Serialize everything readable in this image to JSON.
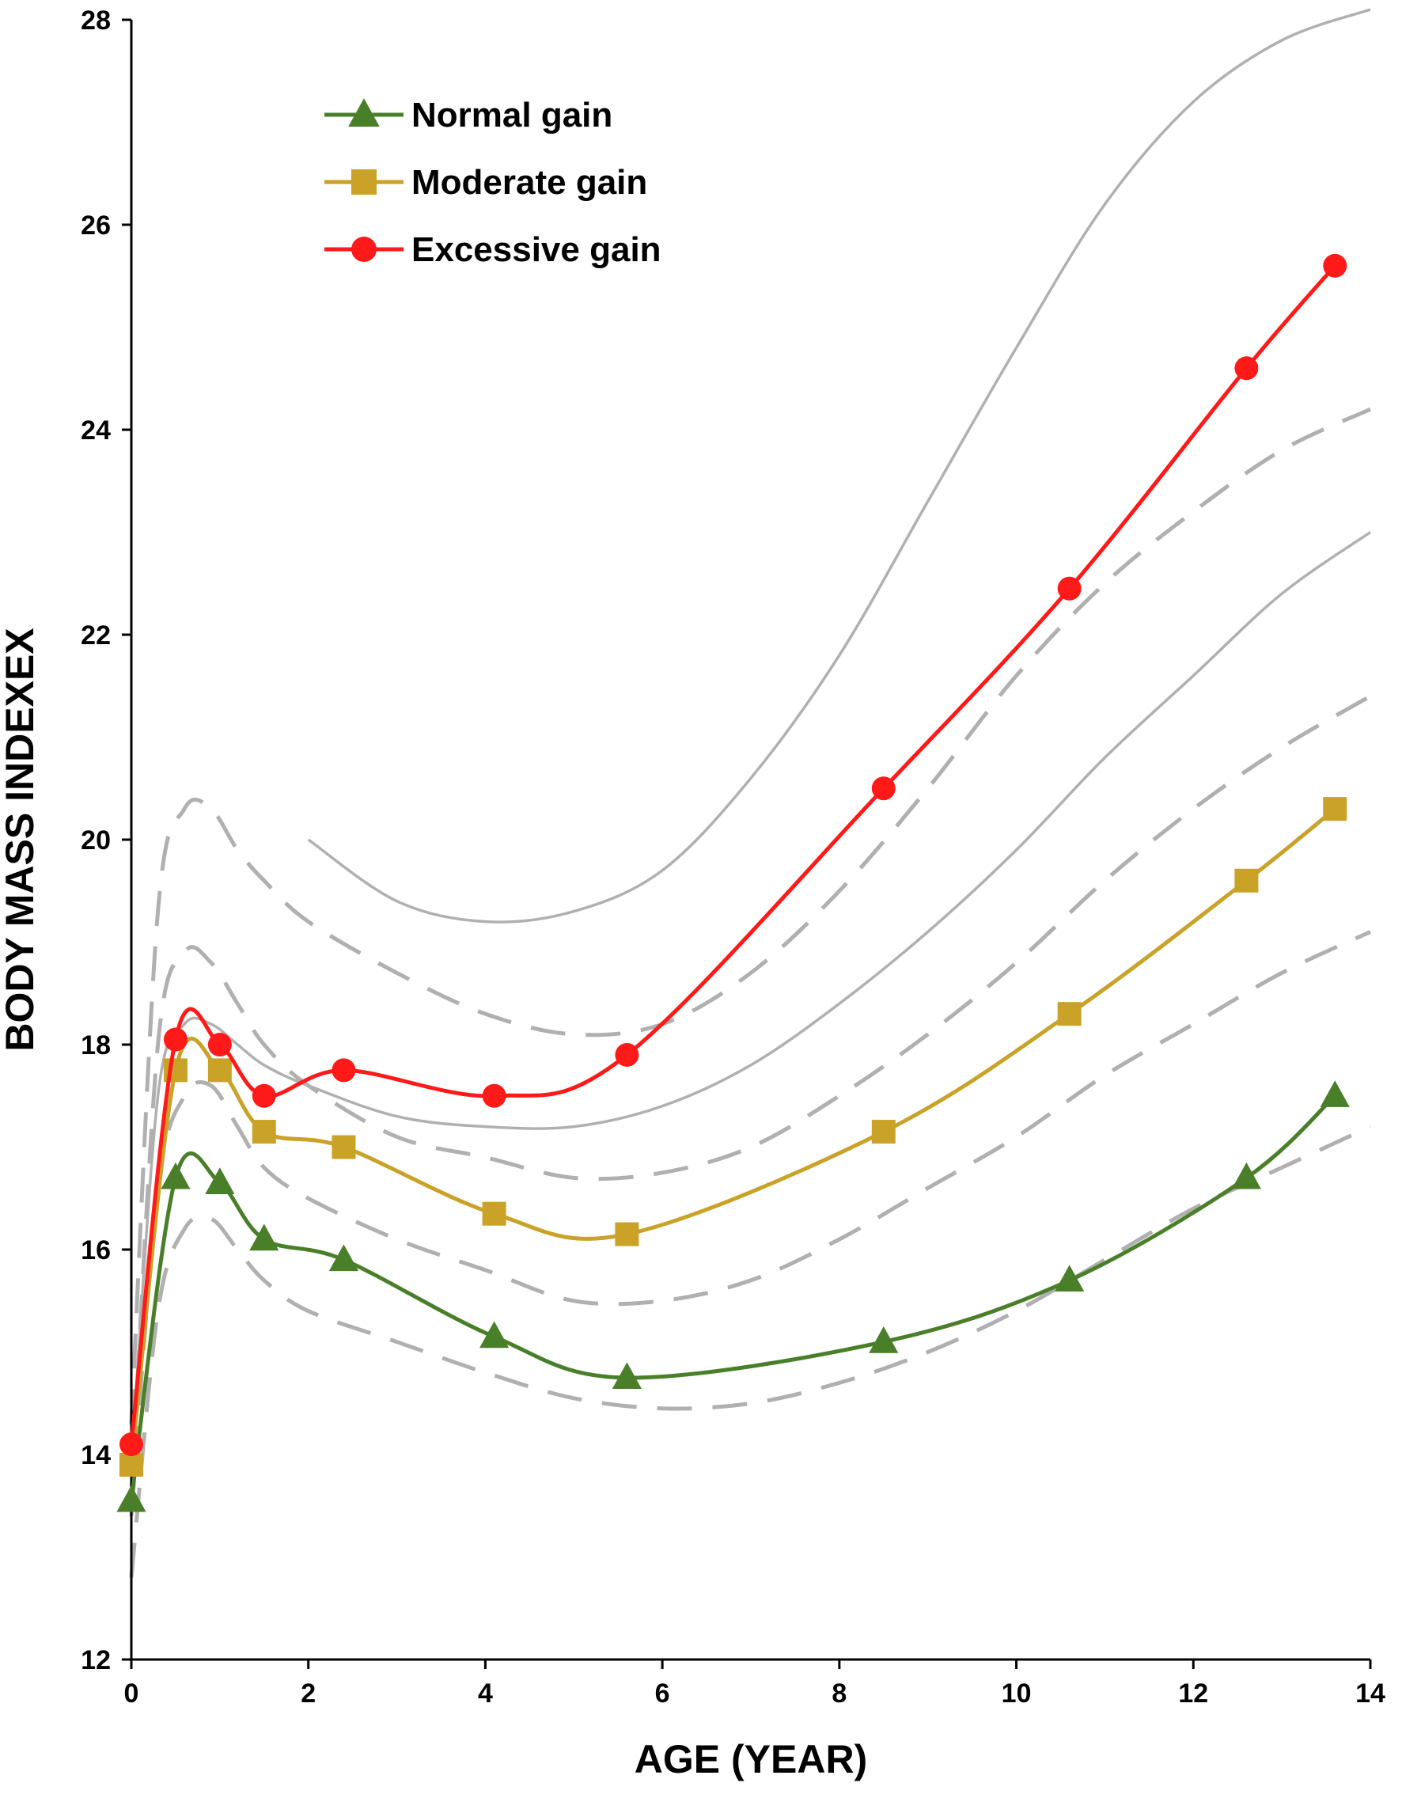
{
  "chart_data": {
    "type": "line",
    "xlabel": "AGE (YEAR)",
    "ylabel": "BODY MASS INDEXEX",
    "xlim": [
      0,
      14
    ],
    "ylim": [
      12,
      28
    ],
    "xticks": [
      0,
      2,
      4,
      6,
      8,
      10,
      12,
      14
    ],
    "yticks": [
      12,
      14,
      16,
      18,
      20,
      22,
      24,
      26,
      28
    ],
    "grid": false,
    "legend_position": "top-left",
    "series": [
      {
        "name": "Normal gain",
        "color": "#4a7f2a",
        "marker": "triangle",
        "x": [
          0,
          0.5,
          1.0,
          1.5,
          2.4,
          4.1,
          5.6,
          8.5,
          10.6,
          12.6,
          13.6
        ],
        "y": [
          13.55,
          16.7,
          16.65,
          16.1,
          15.9,
          15.15,
          14.75,
          15.1,
          15.7,
          16.7,
          17.5
        ]
      },
      {
        "name": "Moderate gain",
        "color": "#c9a227",
        "marker": "square",
        "x": [
          0,
          0.5,
          1.0,
          1.5,
          2.4,
          4.1,
          5.6,
          8.5,
          10.6,
          12.6,
          13.6
        ],
        "y": [
          13.9,
          17.75,
          17.75,
          17.15,
          17.0,
          16.35,
          16.15,
          17.15,
          18.3,
          19.6,
          20.3
        ]
      },
      {
        "name": "Excessive gain",
        "color": "#ff1a1a",
        "marker": "circle",
        "x": [
          0,
          0.5,
          1.0,
          1.5,
          2.4,
          4.1,
          5.6,
          8.5,
          10.6,
          12.6,
          13.6
        ],
        "y": [
          14.1,
          18.05,
          18.0,
          17.5,
          17.75,
          17.5,
          17.9,
          20.5,
          22.45,
          24.6,
          25.6
        ]
      }
    ],
    "reference_curves": [
      {
        "style": "solid",
        "color": "#b0b0b0",
        "x": [
          2,
          3,
          4,
          5,
          6,
          7,
          8,
          9,
          10,
          11,
          12,
          13,
          14
        ],
        "y": [
          20.0,
          19.4,
          19.2,
          19.3,
          19.7,
          20.6,
          21.8,
          23.3,
          24.8,
          26.2,
          27.2,
          27.8,
          28.1
        ]
      },
      {
        "style": "dashed",
        "color": "#b0b0b0",
        "x": [
          0,
          0.3,
          0.6,
          0.9,
          1.2,
          1.5,
          2,
          3,
          4,
          5,
          6,
          7,
          8,
          9,
          10,
          11,
          12,
          13,
          14
        ],
        "y": [
          14.3,
          19.3,
          20.3,
          20.3,
          19.9,
          19.6,
          19.2,
          18.7,
          18.3,
          18.1,
          18.2,
          18.7,
          19.5,
          20.5,
          21.6,
          22.5,
          23.2,
          23.8,
          24.2
        ]
      },
      {
        "style": "solid",
        "color": "#b0b0b0",
        "x": [
          0,
          0.3,
          0.6,
          0.9,
          1.2,
          1.5,
          2,
          3,
          4,
          5,
          6,
          7,
          8,
          9,
          10,
          11,
          12,
          13,
          14
        ],
        "y": [
          13.9,
          17.5,
          18.2,
          18.2,
          18.0,
          17.8,
          17.6,
          17.3,
          17.2,
          17.2,
          17.4,
          17.8,
          18.4,
          19.1,
          19.9,
          20.8,
          21.6,
          22.4,
          23.0
        ]
      },
      {
        "style": "dashed",
        "color": "#b0b0b0",
        "x": [
          0,
          0.3,
          0.6,
          0.9,
          1.2,
          1.5,
          2,
          3,
          4,
          5,
          6,
          7,
          8,
          9,
          10,
          11,
          12,
          13,
          14
        ],
        "y": [
          13.6,
          18.0,
          18.9,
          18.8,
          18.4,
          18.0,
          17.6,
          17.1,
          16.9,
          16.7,
          16.75,
          17.0,
          17.5,
          18.1,
          18.8,
          19.6,
          20.3,
          20.9,
          21.4
        ]
      },
      {
        "style": "dashed",
        "color": "#b0b0b0",
        "x": [
          0,
          0.3,
          0.6,
          0.9,
          1.2,
          1.5,
          2,
          3,
          4,
          5,
          6,
          7,
          8,
          9,
          10,
          11,
          12,
          13,
          14
        ],
        "y": [
          13.4,
          16.6,
          17.5,
          17.6,
          17.2,
          16.8,
          16.5,
          16.1,
          15.8,
          15.5,
          15.5,
          15.7,
          16.1,
          16.6,
          17.1,
          17.7,
          18.2,
          18.7,
          19.1
        ]
      },
      {
        "style": "dashed",
        "color": "#b0b0b0",
        "x": [
          0,
          0.3,
          0.6,
          0.9,
          1.2,
          1.5,
          2,
          3,
          4,
          5,
          6,
          7,
          8,
          9,
          10,
          11,
          12,
          13,
          14
        ],
        "y": [
          12.8,
          15.4,
          16.2,
          16.3,
          16.0,
          15.7,
          15.4,
          15.1,
          14.8,
          14.55,
          14.45,
          14.5,
          14.7,
          15.0,
          15.4,
          15.9,
          16.4,
          16.8,
          17.2
        ]
      }
    ]
  }
}
